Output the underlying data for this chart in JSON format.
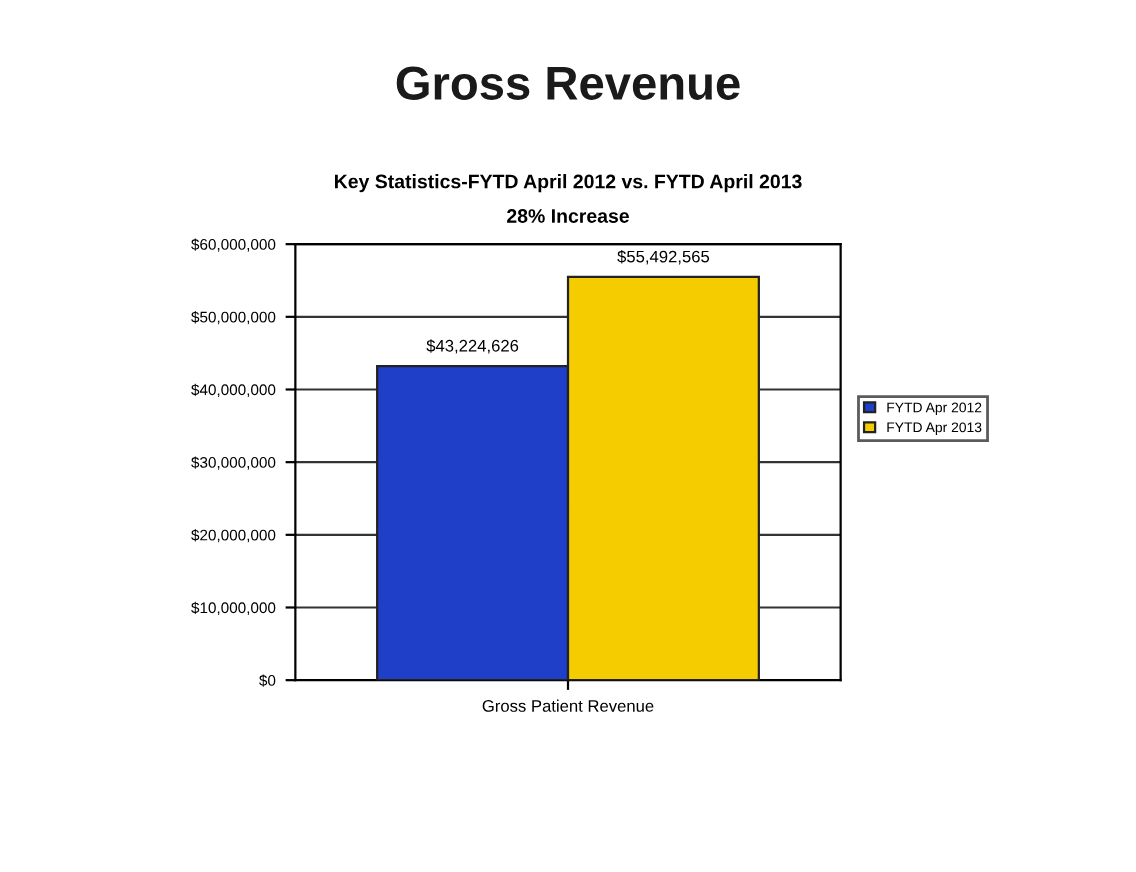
{
  "chart_data": {
    "type": "bar",
    "title": "Gross Revenue",
    "subtitle": "Key Statistics-FYTD April 2012 vs. FYTD April 2013",
    "annotations": [
      "28% Increase"
    ],
    "categories": [
      "Gross Patient Revenue"
    ],
    "series": [
      {
        "name": "FYTD Apr 2012",
        "color": "#1f3fc8",
        "values": [
          43224626
        ],
        "value_labels": [
          "$43,224,626"
        ]
      },
      {
        "name": "FYTD Apr 2013",
        "color": "#f5cc00",
        "values": [
          55492565
        ],
        "value_labels": [
          "$55,492,565"
        ]
      }
    ],
    "ylim": [
      0,
      60000000
    ],
    "yticks": [
      {
        "value": 0,
        "label": "$0"
      },
      {
        "value": 10000000,
        "label": "$10,000,000"
      },
      {
        "value": 20000000,
        "label": "$20,000,000"
      },
      {
        "value": 30000000,
        "label": "$30,000,000"
      },
      {
        "value": 40000000,
        "label": "$40,000,000"
      },
      {
        "value": 50000000,
        "label": "$50,000,000"
      },
      {
        "value": 60000000,
        "label": "$60,000,000"
      }
    ],
    "grid": "y",
    "legend": "right"
  }
}
